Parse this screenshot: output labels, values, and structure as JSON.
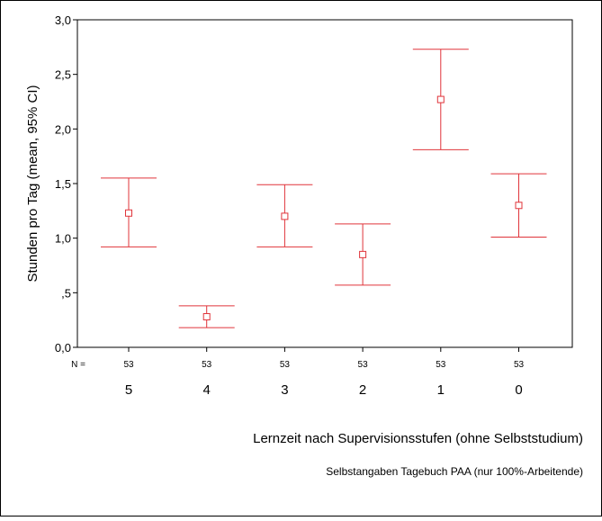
{
  "chart_data": {
    "type": "errorbar",
    "categories": [
      "5",
      "4",
      "3",
      "2",
      "1",
      "0"
    ],
    "n_label": "N =",
    "n": [
      "53",
      "53",
      "53",
      "53",
      "53",
      "53"
    ],
    "mean": [
      1.23,
      0.28,
      1.2,
      0.85,
      2.27,
      1.3
    ],
    "ci_lower": [
      0.92,
      0.18,
      0.92,
      0.57,
      1.81,
      1.01
    ],
    "ci_upper": [
      1.55,
      0.38,
      1.49,
      1.13,
      2.73,
      1.59
    ],
    "ylim": [
      0,
      3
    ],
    "yticks": [
      0,
      0.5,
      1,
      1.5,
      2,
      2.5,
      3
    ],
    "ytick_labels": [
      "0,0",
      ",5",
      "1,0",
      "1,5",
      "2,0",
      "2,5",
      "3,0"
    ],
    "ylabel": "Stunden pro Tag (mean, 95% CI)",
    "xlabel": "Lernzeit nach Supervisionsstufen (ohne Selbststudium)",
    "subtitle": "Selbstangaben Tagebuch PAA (nur 100%-Arbeitende)",
    "grid": false,
    "colors": {
      "marks": "#e0343a",
      "axes": "#000000",
      "frame": "#000000"
    }
  }
}
